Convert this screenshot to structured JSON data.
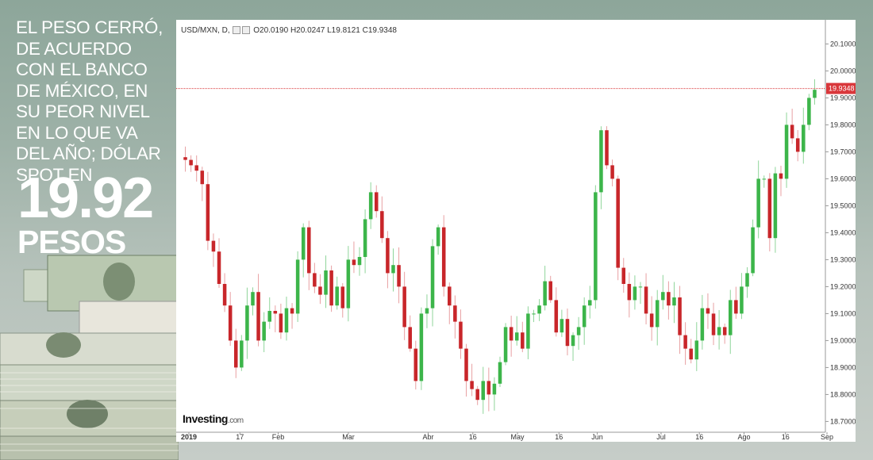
{
  "headline": "EL PESO CERRÓ, DE ACUERDO CON EL BANCO DE MÉXICO, EN SU PEOR NIVEL EN LO QUE VA DEL AÑO; DÓLAR SPOT EN",
  "big_number": "19.92",
  "big_unit": "PESOS",
  "chart_header": {
    "symbol": "USD/MXN, D,",
    "open": "O20.0190",
    "high": "H20.0247",
    "low": "L19.8121",
    "close": "C19.9348"
  },
  "brand": {
    "name": "Investing",
    "suffix": ".com"
  },
  "colors": {
    "up": "#3cb54a",
    "down": "#c8262a",
    "price_line": "#d9373b",
    "grid": "#e6e6e6"
  },
  "icons": [
    "money-stack-icon"
  ],
  "chart_data": {
    "type": "candlestick",
    "title": "",
    "xlabel": "",
    "ylabel": "",
    "ylim": [
      18.66,
      20.16
    ],
    "y_ticks": [
      "18.7000",
      "18.8000",
      "18.9000",
      "19.0000",
      "19.1000",
      "19.2000",
      "19.3000",
      "19.4000",
      "19.5000",
      "19.6000",
      "19.7000",
      "19.8000",
      "19.9000",
      "20.0000",
      "20.1000"
    ],
    "x_ticks": [
      "2019",
      "17",
      "Feb",
      "Mar",
      "Abr",
      "16",
      "May",
      "16",
      "Jun",
      "Jul",
      "16",
      "Ago",
      "16",
      "Sep"
    ],
    "current_price": "19.9348",
    "grid": false,
    "closes": [
      19.67,
      19.65,
      19.63,
      19.58,
      19.37,
      19.33,
      19.21,
      19.13,
      19.0,
      18.9,
      19.0,
      19.13,
      19.18,
      19.0,
      19.07,
      19.11,
      19.1,
      19.03,
      19.12,
      19.1,
      19.3,
      19.42,
      19.25,
      19.2,
      19.17,
      19.26,
      19.13,
      19.2,
      19.12,
      19.3,
      19.28,
      19.31,
      19.45,
      19.55,
      19.48,
      19.38,
      19.25,
      19.28,
      19.2,
      19.05,
      18.97,
      18.85,
      19.1,
      19.12,
      19.35,
      19.42,
      19.2,
      19.13,
      19.07,
      18.97,
      18.85,
      18.82,
      18.78,
      18.85,
      18.8,
      18.84,
      18.92,
      19.05,
      19.0,
      19.03,
      18.97,
      19.1,
      19.1,
      19.13,
      19.22,
      19.15,
      19.03,
      19.08,
      18.98,
      19.02,
      19.05,
      19.13,
      19.15,
      19.55,
      19.78,
      19.65,
      19.6,
      19.27,
      19.21,
      19.15,
      19.2,
      19.2,
      19.1,
      19.05,
      19.15,
      19.18,
      19.13,
      19.16,
      19.02,
      18.97,
      18.93,
      19.0,
      19.12,
      19.1,
      19.02,
      19.05,
      19.02,
      19.15,
      19.1,
      19.2,
      19.25,
      19.42,
      19.6,
      19.6,
      19.38,
      19.62,
      19.6,
      19.8,
      19.75,
      19.7,
      19.8,
      19.9,
      19.93
    ],
    "volatility_seed": 7
  }
}
